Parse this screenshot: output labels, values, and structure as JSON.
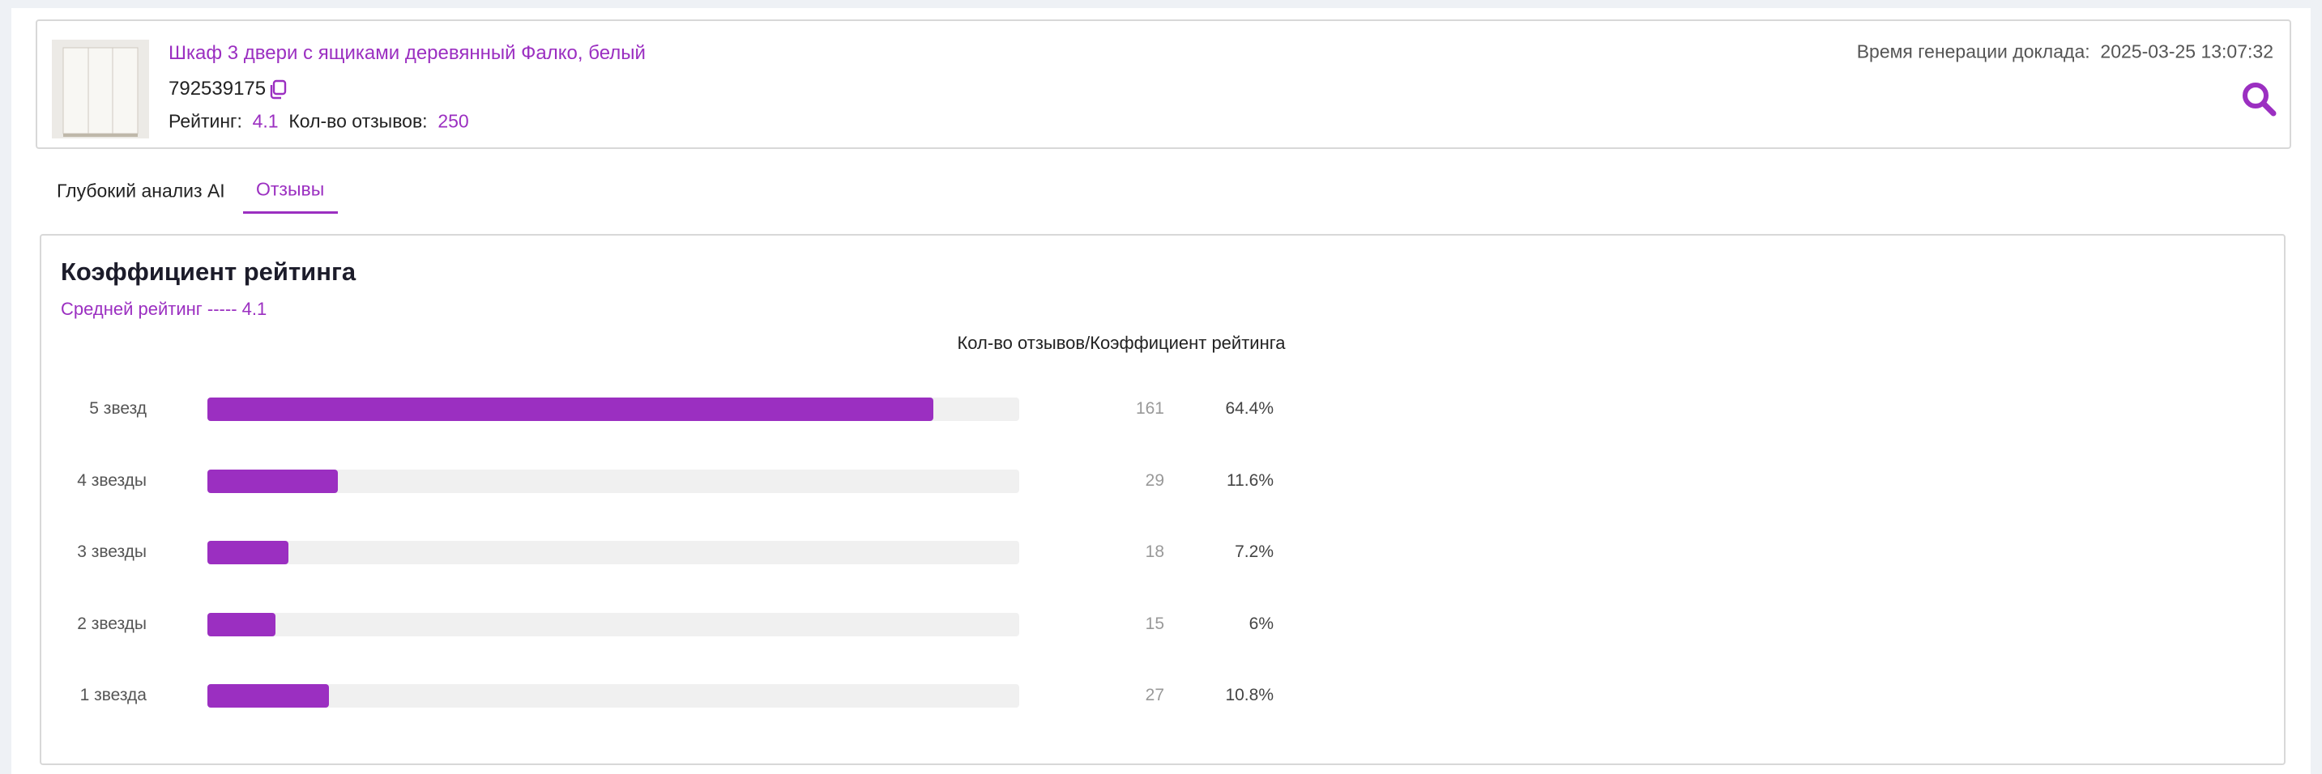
{
  "product": {
    "title": "Шкаф 3 двери с ящиками деревянный Фалко, белый",
    "id": "792539175",
    "rating_label": "Рейтинг:",
    "rating": 4.1,
    "reviews_label": "Кол-во отзывов:",
    "reviews": 250
  },
  "report": {
    "label": "Время генерации доклада:",
    "time": "2025-03-25 13:07:32"
  },
  "tabs": [
    "Глубокий анализ AI",
    "Отзывы"
  ],
  "ratings": {
    "title": "Коэффициент рейтинга",
    "average_label": "Средней рейтинг -----",
    "average": 4.1,
    "header": "Кол-во отзывов/Коэффициент рейтинга",
    "categories": [
      "5 звезд",
      "4 звезды",
      "3 звезды",
      "2 звезды",
      "1 звезда"
    ],
    "counts": [
      161,
      29,
      18,
      15,
      27
    ],
    "percent_labels": [
      "64.4%",
      "11.6%",
      "7.2%",
      "6%",
      "10.8%"
    ],
    "xlim": [
      0,
      180
    ],
    "color": "#9b2fc1"
  }
}
